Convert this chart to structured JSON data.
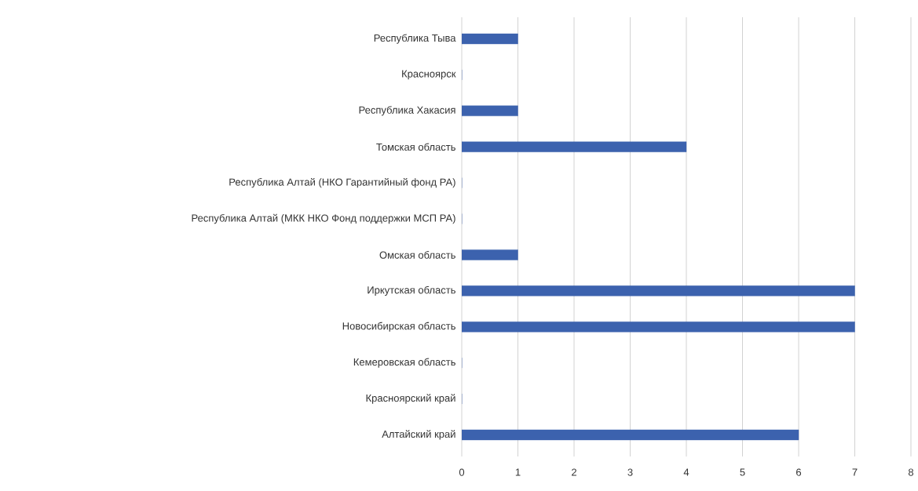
{
  "chart_data": {
    "type": "bar",
    "orientation": "horizontal",
    "categories": [
      "Республика Тыва",
      "Красноярск",
      "Республика Хакасия",
      "Томская область",
      "Республика Алтай (НКО Гарантийный фонд РА)",
      "Республика Алтай (МКК НКО Фонд поддержки МСП РА)",
      "Омская область",
      "Иркутская область",
      "Новосибирская область",
      "Кемеровская область",
      "Красноярский край",
      "Алтайский край"
    ],
    "values": [
      1,
      0,
      1,
      4,
      0,
      0,
      1,
      7,
      7,
      0,
      0,
      6
    ],
    "color": "#3c62ae",
    "xlim": [
      0,
      8
    ],
    "xticks": [
      0,
      1,
      2,
      3,
      4,
      5,
      6,
      7,
      8
    ],
    "grid": "x"
  }
}
